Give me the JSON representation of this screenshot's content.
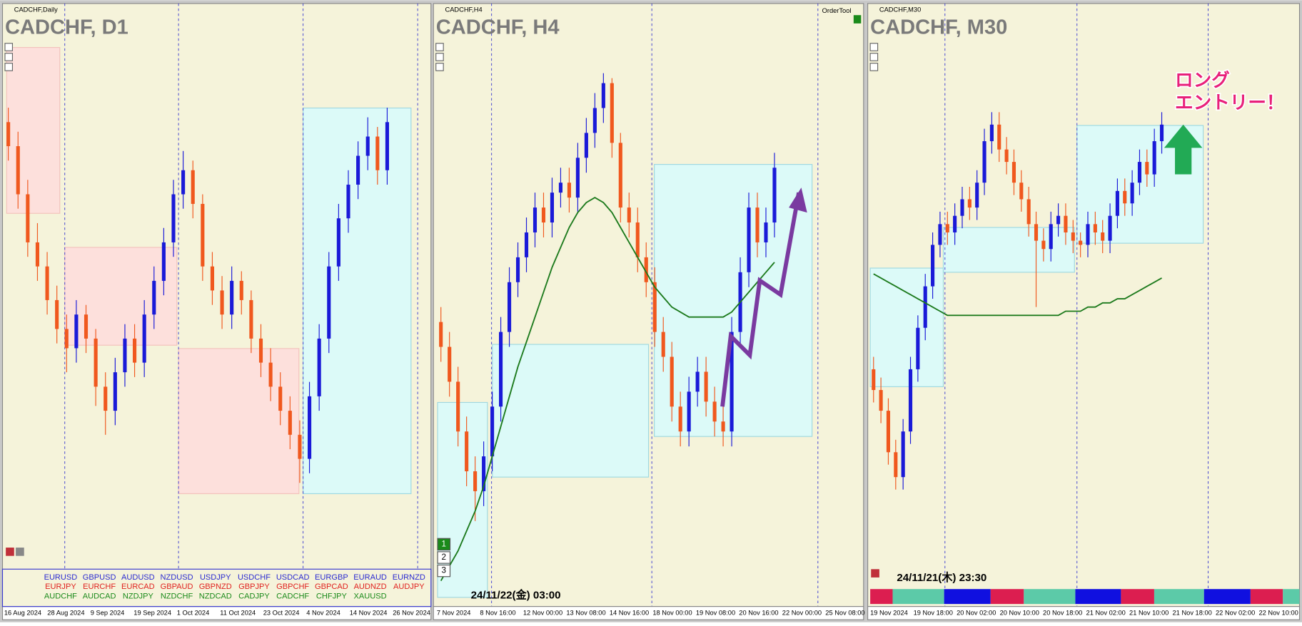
{
  "panels": [
    {
      "header": "CADCHF,Daily",
      "title": "CADCHF, D1",
      "x_labels": [
        "16 Aug 2024",
        "28 Aug 2024",
        "9 Sep 2024",
        "19 Sep 2024",
        "1 Oct 2024",
        "11 Oct 2024",
        "23 Oct 2024",
        "4 Nov 2024",
        "14 Nov 2024",
        "26 Nov 2024"
      ],
      "candles": [
        [
          85,
          88,
          77,
          80
        ],
        [
          80,
          83,
          67,
          70
        ],
        [
          70,
          73,
          57,
          60
        ],
        [
          60,
          64,
          52,
          55
        ],
        [
          55,
          58,
          45,
          48
        ],
        [
          48,
          51,
          39,
          42
        ],
        [
          42,
          45,
          33,
          38
        ],
        [
          38,
          48,
          35,
          45
        ],
        [
          45,
          47,
          37,
          40
        ],
        [
          40,
          42,
          26,
          30
        ],
        [
          30,
          33,
          20,
          25
        ],
        [
          25,
          36,
          22,
          33
        ],
        [
          33,
          43,
          30,
          40
        ],
        [
          40,
          43,
          32,
          35
        ],
        [
          35,
          48,
          32,
          45
        ],
        [
          45,
          55,
          42,
          52
        ],
        [
          52,
          63,
          49,
          60
        ],
        [
          60,
          73,
          57,
          70
        ],
        [
          70,
          79,
          67,
          75
        ],
        [
          75,
          77,
          65,
          68
        ],
        [
          68,
          70,
          52,
          55
        ],
        [
          55,
          58,
          47,
          50
        ],
        [
          50,
          53,
          42,
          45
        ],
        [
          45,
          55,
          42,
          52
        ],
        [
          52,
          54,
          45,
          48
        ],
        [
          48,
          50,
          37,
          40
        ],
        [
          40,
          43,
          32,
          35
        ],
        [
          35,
          38,
          27,
          30
        ],
        [
          30,
          33,
          22,
          25
        ],
        [
          25,
          28,
          17,
          20
        ],
        [
          20,
          23,
          10,
          15
        ],
        [
          15,
          31,
          12,
          28
        ],
        [
          28,
          43,
          25,
          40
        ],
        [
          40,
          58,
          37,
          55
        ],
        [
          55,
          68,
          52,
          65
        ],
        [
          65,
          75,
          62,
          72
        ],
        [
          72,
          81,
          69,
          78
        ],
        [
          78,
          86,
          75,
          82
        ],
        [
          82,
          84,
          72,
          75
        ],
        [
          75,
          88,
          72,
          85
        ]
      ],
      "symbols": [
        [
          "EURUSD",
          "GBPUSD",
          "AUDUSD",
          "NZDUSD",
          "USDJPY",
          "USDCHF",
          "USDCAD",
          "EURGBP",
          "EURAUD",
          "EURNZD"
        ],
        [
          "EURJPY",
          "EURCHF",
          "EURCAD",
          "GBPAUD",
          "GBPNZD",
          "GBPJPY",
          "GBPCHF",
          "GBPCAD",
          "AUDNZD",
          "AUDJPY"
        ],
        [
          "AUDCHF",
          "AUDCAD",
          "NZDJPY",
          "NZDCHF",
          "NZDCAD",
          "CADJPY",
          "CADCHF",
          "CHFJPY",
          "XAUUSD"
        ]
      ]
    },
    {
      "header": "CADCHF,H4",
      "title": "CADCHF, H4",
      "x_labels": [
        "7 Nov 2024",
        "8 Nov 16:00",
        "12 Nov 00:00",
        "13 Nov 08:00",
        "14 Nov 16:00",
        "18 Nov 00:00",
        "19 Nov 08:00",
        "20 Nov 16:00",
        "22 Nov 00:00",
        "25 Nov 08:00"
      ],
      "candles": [
        [
          52,
          55,
          44,
          47
        ],
        [
          47,
          50,
          37,
          40
        ],
        [
          40,
          43,
          27,
          30
        ],
        [
          30,
          33,
          19,
          22
        ],
        [
          22,
          25,
          12,
          18
        ],
        [
          18,
          28,
          15,
          25
        ],
        [
          25,
          38,
          22,
          35
        ],
        [
          35,
          53,
          32,
          50
        ],
        [
          50,
          63,
          47,
          60
        ],
        [
          60,
          68,
          57,
          65
        ],
        [
          65,
          73,
          62,
          70
        ],
        [
          70,
          78,
          67,
          75
        ],
        [
          75,
          78,
          69,
          72
        ],
        [
          72,
          81,
          69,
          78
        ],
        [
          78,
          83,
          75,
          80
        ],
        [
          80,
          83,
          74,
          77
        ],
        [
          77,
          88,
          74,
          85
        ],
        [
          85,
          93,
          82,
          90
        ],
        [
          90,
          98,
          87,
          95
        ],
        [
          95,
          102,
          92,
          100
        ],
        [
          100,
          101,
          85,
          88
        ],
        [
          88,
          90,
          72,
          75
        ],
        [
          75,
          78,
          69,
          72
        ],
        [
          72,
          75,
          62,
          65
        ],
        [
          65,
          68,
          57,
          60
        ],
        [
          60,
          63,
          47,
          50
        ],
        [
          50,
          53,
          42,
          45
        ],
        [
          45,
          48,
          32,
          35
        ],
        [
          35,
          38,
          27,
          30
        ],
        [
          30,
          41,
          27,
          38
        ],
        [
          38,
          45,
          35,
          42
        ],
        [
          42,
          45,
          33,
          36
        ],
        [
          36,
          39,
          29,
          32
        ],
        [
          32,
          35,
          27,
          30
        ],
        [
          30,
          53,
          27,
          50
        ],
        [
          50,
          65,
          47,
          62
        ],
        [
          62,
          78,
          59,
          75
        ],
        [
          75,
          78,
          65,
          68
        ],
        [
          68,
          75,
          65,
          72
        ],
        [
          72,
          86,
          69,
          83
        ]
      ],
      "ma": [
        0,
        3,
        6,
        10,
        14,
        19,
        25,
        31,
        37,
        43,
        48,
        53,
        58,
        63,
        67,
        71,
        74,
        76,
        77,
        76,
        74,
        71,
        68,
        65,
        62,
        59,
        57,
        55,
        54,
        53,
        53,
        53,
        53,
        53,
        54,
        56,
        58,
        60,
        62,
        64
      ],
      "tool": "OrderTool",
      "buttons": [
        "1",
        "2",
        "3"
      ],
      "timestamp": "24/11/22(金) 03:00"
    },
    {
      "header": "CADCHF,M30",
      "title": "CADCHF, M30",
      "x_labels": [
        "19 Nov 2024",
        "19 Nov 18:00",
        "20 Nov 02:00",
        "20 Nov 10:00",
        "20 Nov 18:00",
        "21 Nov 02:00",
        "21 Nov 10:00",
        "21 Nov 18:00",
        "22 Nov 02:00",
        "22 Nov 10:00"
      ],
      "candles": [
        [
          35,
          38,
          27,
          30
        ],
        [
          30,
          33,
          22,
          25
        ],
        [
          25,
          28,
          12,
          15
        ],
        [
          15,
          18,
          6,
          9
        ],
        [
          9,
          23,
          6,
          20
        ],
        [
          20,
          38,
          17,
          35
        ],
        [
          35,
          48,
          32,
          45
        ],
        [
          45,
          58,
          42,
          55
        ],
        [
          55,
          68,
          52,
          65
        ],
        [
          65,
          73,
          62,
          70
        ],
        [
          70,
          73,
          65,
          68
        ],
        [
          68,
          75,
          65,
          72
        ],
        [
          72,
          79,
          69,
          76
        ],
        [
          76,
          79,
          71,
          74
        ],
        [
          74,
          83,
          71,
          80
        ],
        [
          80,
          93,
          77,
          90
        ],
        [
          90,
          97,
          87,
          94
        ],
        [
          94,
          97,
          85,
          88
        ],
        [
          88,
          91,
          82,
          85
        ],
        [
          85,
          88,
          77,
          80
        ],
        [
          80,
          83,
          73,
          76
        ],
        [
          76,
          79,
          67,
          70
        ],
        [
          70,
          73,
          50,
          66
        ],
        [
          66,
          69,
          61,
          64
        ],
        [
          64,
          73,
          61,
          70
        ],
        [
          70,
          75,
          67,
          72
        ],
        [
          72,
          75,
          65,
          68
        ],
        [
          68,
          71,
          63,
          66
        ],
        [
          66,
          68,
          62,
          65
        ],
        [
          65,
          73,
          62,
          70
        ],
        [
          70,
          73,
          65,
          68
        ],
        [
          68,
          71,
          63,
          66
        ],
        [
          66,
          75,
          63,
          72
        ],
        [
          72,
          81,
          69,
          78
        ],
        [
          78,
          81,
          72,
          75
        ],
        [
          75,
          83,
          72,
          80
        ],
        [
          80,
          88,
          77,
          85
        ],
        [
          85,
          88,
          79,
          82
        ],
        [
          82,
          93,
          79,
          90
        ],
        [
          90,
          97,
          87,
          94
        ]
      ],
      "ma": [
        58,
        57,
        56,
        55,
        54,
        53,
        52,
        51,
        50,
        49,
        48,
        48,
        48,
        48,
        48,
        48,
        48,
        48,
        48,
        48,
        48,
        48,
        48,
        48,
        48,
        48,
        49,
        49,
        49,
        50,
        50,
        51,
        51,
        52,
        52,
        53,
        54,
        55,
        56,
        57
      ],
      "timestamp": "24/11/21(木) 23:30",
      "annotation": [
        "ロング",
        "エントリー！"
      ]
    }
  ]
}
